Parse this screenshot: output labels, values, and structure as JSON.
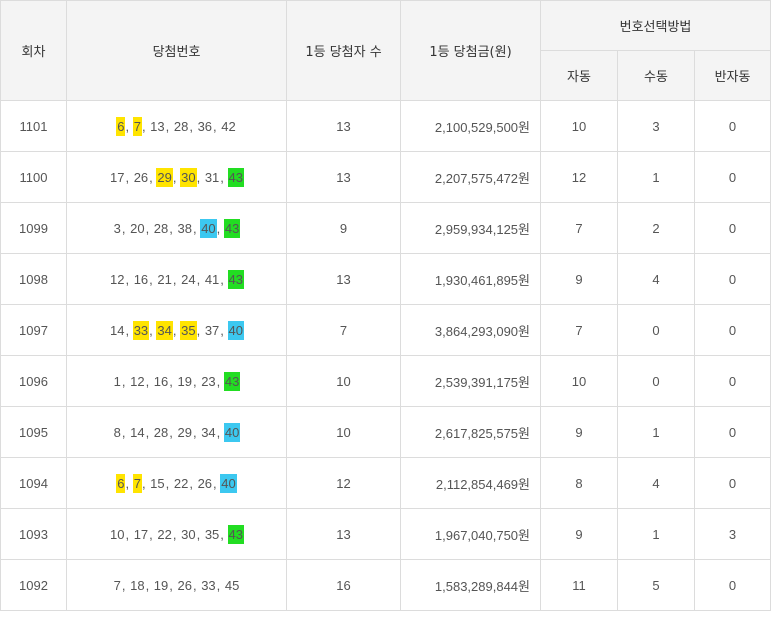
{
  "headers": {
    "round": "회차",
    "numbers": "당첨번호",
    "winners": "1등 당첨자 수",
    "prize": "1등 당첨금(원)",
    "method": "번호선택방법",
    "auto": "자동",
    "manual": "수동",
    "semi": "반자동"
  },
  "highlight_colors": {
    "yellow": "#ffe400",
    "green": "#22dd22",
    "blue": "#3cc8f0"
  },
  "rows": [
    {
      "round": "1101",
      "numbers": [
        {
          "v": "6",
          "hl": "yellow"
        },
        {
          "v": "7",
          "hl": "yellow"
        },
        {
          "v": "13"
        },
        {
          "v": "28"
        },
        {
          "v": "36"
        },
        {
          "v": "42"
        }
      ],
      "winners": "13",
      "prize": "2,100,529,500원",
      "auto": "10",
      "manual": "3",
      "semi": "0"
    },
    {
      "round": "1100",
      "numbers": [
        {
          "v": "17"
        },
        {
          "v": "26"
        },
        {
          "v": "29",
          "hl": "yellow"
        },
        {
          "v": "30",
          "hl": "yellow"
        },
        {
          "v": "31"
        },
        {
          "v": "43",
          "hl": "green"
        }
      ],
      "winners": "13",
      "prize": "2,207,575,472원",
      "auto": "12",
      "manual": "1",
      "semi": "0"
    },
    {
      "round": "1099",
      "numbers": [
        {
          "v": "3"
        },
        {
          "v": "20"
        },
        {
          "v": "28"
        },
        {
          "v": "38"
        },
        {
          "v": "40",
          "hl": "blue"
        },
        {
          "v": "43",
          "hl": "green"
        }
      ],
      "winners": "9",
      "prize": "2,959,934,125원",
      "auto": "7",
      "manual": "2",
      "semi": "0"
    },
    {
      "round": "1098",
      "numbers": [
        {
          "v": "12"
        },
        {
          "v": "16"
        },
        {
          "v": "21"
        },
        {
          "v": "24"
        },
        {
          "v": "41"
        },
        {
          "v": "43",
          "hl": "green"
        }
      ],
      "winners": "13",
      "prize": "1,930,461,895원",
      "auto": "9",
      "manual": "4",
      "semi": "0"
    },
    {
      "round": "1097",
      "numbers": [
        {
          "v": "14"
        },
        {
          "v": "33",
          "hl": "yellow"
        },
        {
          "v": "34",
          "hl": "yellow"
        },
        {
          "v": "35",
          "hl": "yellow"
        },
        {
          "v": "37"
        },
        {
          "v": "40",
          "hl": "blue"
        }
      ],
      "winners": "7",
      "prize": "3,864,293,090원",
      "auto": "7",
      "manual": "0",
      "semi": "0"
    },
    {
      "round": "1096",
      "numbers": [
        {
          "v": "1"
        },
        {
          "v": "12"
        },
        {
          "v": "16"
        },
        {
          "v": "19"
        },
        {
          "v": "23"
        },
        {
          "v": "43",
          "hl": "green"
        }
      ],
      "winners": "10",
      "prize": "2,539,391,175원",
      "auto": "10",
      "manual": "0",
      "semi": "0"
    },
    {
      "round": "1095",
      "numbers": [
        {
          "v": "8"
        },
        {
          "v": "14"
        },
        {
          "v": "28"
        },
        {
          "v": "29"
        },
        {
          "v": "34"
        },
        {
          "v": "40",
          "hl": "blue"
        }
      ],
      "winners": "10",
      "prize": "2,617,825,575원",
      "auto": "9",
      "manual": "1",
      "semi": "0"
    },
    {
      "round": "1094",
      "numbers": [
        {
          "v": "6",
          "hl": "yellow"
        },
        {
          "v": "7",
          "hl": "yellow"
        },
        {
          "v": "15"
        },
        {
          "v": "22"
        },
        {
          "v": "26"
        },
        {
          "v": "40",
          "hl": "blue"
        }
      ],
      "winners": "12",
      "prize": "2,112,854,469원",
      "auto": "8",
      "manual": "4",
      "semi": "0"
    },
    {
      "round": "1093",
      "numbers": [
        {
          "v": "10"
        },
        {
          "v": "17"
        },
        {
          "v": "22"
        },
        {
          "v": "30"
        },
        {
          "v": "35"
        },
        {
          "v": "43",
          "hl": "green"
        }
      ],
      "winners": "13",
      "prize": "1,967,040,750원",
      "auto": "9",
      "manual": "1",
      "semi": "3"
    },
    {
      "round": "1092",
      "numbers": [
        {
          "v": "7"
        },
        {
          "v": "18"
        },
        {
          "v": "19"
        },
        {
          "v": "26"
        },
        {
          "v": "33"
        },
        {
          "v": "45"
        }
      ],
      "winners": "16",
      "prize": "1,583,289,844원",
      "auto": "11",
      "manual": "5",
      "semi": "0"
    }
  ]
}
